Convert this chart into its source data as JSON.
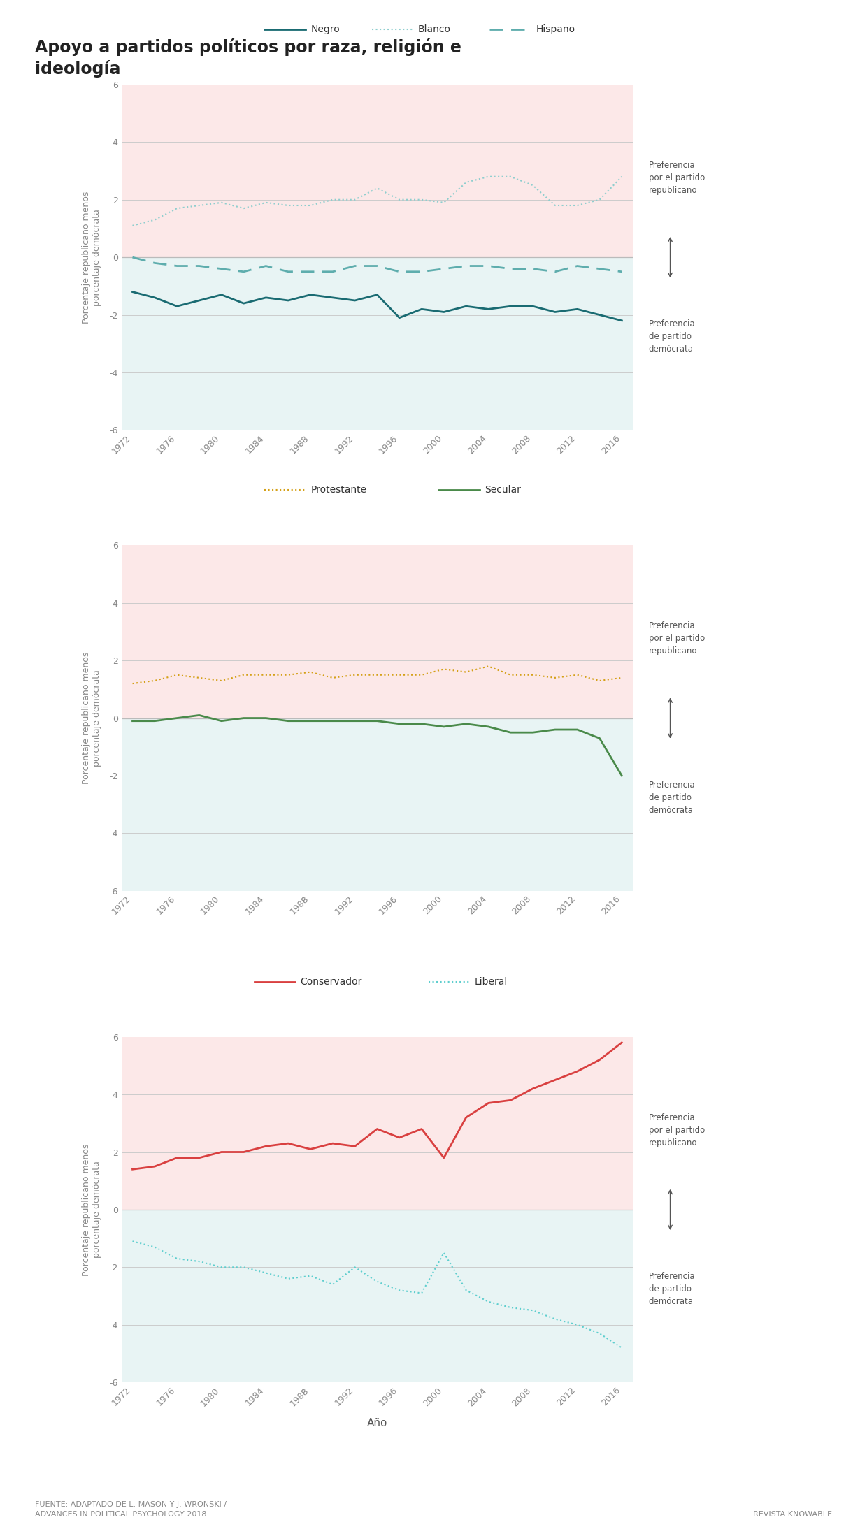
{
  "title": "Apoyo a partidos políticos por raza, religión e\nideología",
  "years": [
    1972,
    1974,
    1976,
    1978,
    1980,
    1982,
    1984,
    1986,
    1988,
    1990,
    1992,
    1994,
    1996,
    1998,
    2000,
    2002,
    2004,
    2006,
    2008,
    2010,
    2012,
    2014,
    2016
  ],
  "chart1": {
    "negro": [
      -1.2,
      -1.4,
      -1.7,
      -1.5,
      -1.3,
      -1.6,
      -1.4,
      -1.5,
      -1.3,
      -1.4,
      -1.5,
      -1.3,
      -2.1,
      -1.8,
      -1.9,
      -1.7,
      -1.8,
      -1.7,
      -1.7,
      -1.9,
      -1.8,
      -2.0,
      -2.2
    ],
    "blanco": [
      1.1,
      1.3,
      1.7,
      1.8,
      1.9,
      1.7,
      1.9,
      1.8,
      1.8,
      2.0,
      2.0,
      2.4,
      2.0,
      2.0,
      1.9,
      2.6,
      2.8,
      2.8,
      2.5,
      1.8,
      1.8,
      2.0,
      2.8
    ],
    "hispano": [
      0.0,
      -0.2,
      -0.3,
      -0.3,
      -0.4,
      -0.5,
      -0.3,
      -0.5,
      -0.5,
      -0.5,
      -0.3,
      -0.3,
      -0.5,
      -0.5,
      -0.4,
      -0.3,
      -0.3,
      -0.4,
      -0.4,
      -0.5,
      -0.3,
      -0.4,
      -0.5
    ]
  },
  "chart2": {
    "protestante": [
      1.2,
      1.3,
      1.5,
      1.4,
      1.3,
      1.5,
      1.5,
      1.5,
      1.6,
      1.4,
      1.5,
      1.5,
      1.5,
      1.5,
      1.7,
      1.6,
      1.8,
      1.5,
      1.5,
      1.4,
      1.5,
      1.3,
      1.4
    ],
    "secular": [
      -0.1,
      -0.1,
      0.0,
      0.1,
      -0.1,
      0.0,
      0.0,
      -0.1,
      -0.1,
      -0.1,
      -0.1,
      -0.1,
      -0.2,
      -0.2,
      -0.3,
      -0.2,
      -0.3,
      -0.5,
      -0.5,
      -0.4,
      -0.4,
      -0.7,
      -2.0
    ]
  },
  "chart3": {
    "conservador": [
      1.4,
      1.5,
      1.8,
      1.8,
      2.0,
      2.0,
      2.2,
      2.3,
      2.1,
      2.3,
      2.2,
      2.8,
      2.5,
      2.8,
      1.8,
      3.2,
      3.7,
      3.8,
      4.2,
      4.5,
      4.8,
      5.2,
      5.8
    ],
    "liberal": [
      -1.1,
      -1.3,
      -1.7,
      -1.8,
      -2.0,
      -2.0,
      -2.2,
      -2.4,
      -2.3,
      -2.6,
      -2.0,
      -2.5,
      -2.8,
      -2.9,
      -1.5,
      -2.8,
      -3.2,
      -3.4,
      -3.5,
      -3.8,
      -4.0,
      -4.3,
      -4.8
    ]
  },
  "ylabel": "Porcentaje republicano menos\nporcentaje demócrata",
  "xlabel": "Año",
  "ylim": [
    -6,
    6
  ],
  "yticks": [
    -6,
    -4,
    -2,
    0,
    2,
    4,
    6
  ],
  "xticks": [
    1972,
    1976,
    1980,
    1984,
    1988,
    1992,
    1996,
    2000,
    2004,
    2008,
    2012,
    2016
  ],
  "color_negro": "#1a6b72",
  "color_blanco": "#8ecece",
  "color_hispano": "#5eadad",
  "color_protestante": "#d4a017",
  "color_secular": "#4a8a4a",
  "color_conservador": "#d94040",
  "color_liberal": "#5ecece",
  "bg_pink": "#fce8e8",
  "bg_blue": "#e8f4f4",
  "source_text": "FUENTE: ADAPTADO DE L. MASON Y J. WRONSKI /\nADVANCES IN POLITICAL PSYCHOLOGY 2018",
  "credit_text": "REVISTA KNOWABLE",
  "ann_rep": "Preferencia\npor el partido\nrepublicano",
  "ann_dem": "Preferencia\nde partido\ndemócrata"
}
